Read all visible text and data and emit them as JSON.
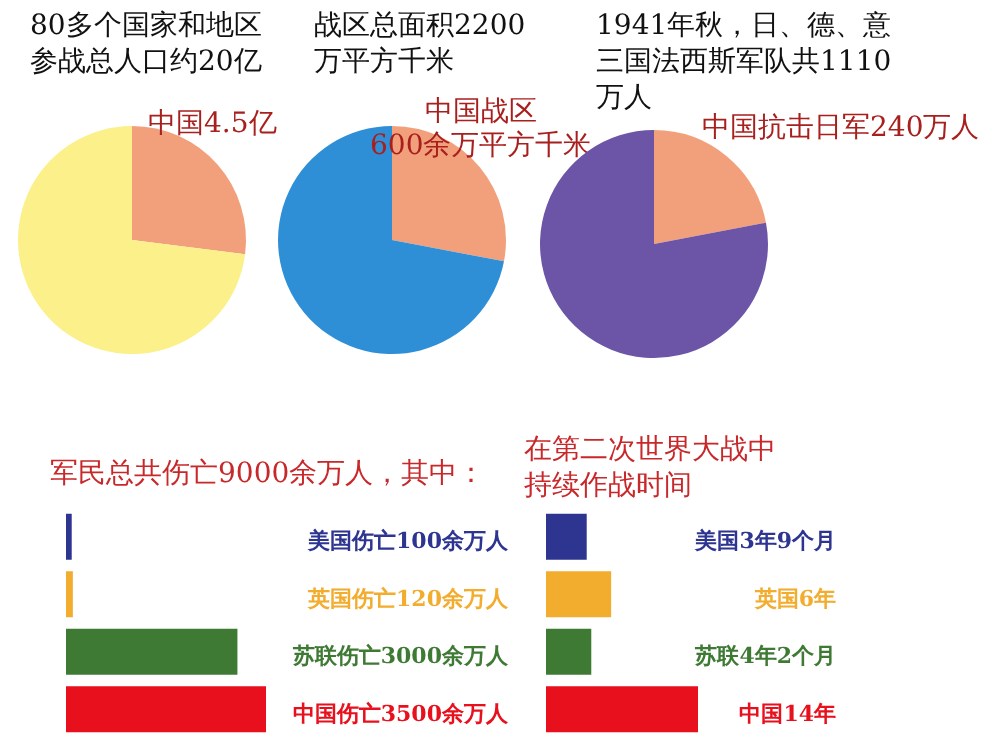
{
  "chart_data": [
    {
      "type": "pie",
      "title": "80多个国家和地区参战总人口约20亿",
      "categories": [
        "中国4.5亿",
        null
      ],
      "values": [
        27,
        73
      ],
      "colors": [
        "#f2a07c",
        "#fbf08a"
      ]
    },
    {
      "type": "pie",
      "title": "战区总面积2200万平方千米",
      "categories": [
        "中国战区\n600余万平方千米",
        null
      ],
      "values": [
        28,
        72
      ],
      "colors": [
        "#f2a07c",
        "#2e8fd6"
      ]
    },
    {
      "type": "pie",
      "title": "1941年秋，日、德、意三国法西斯军队共1110万人",
      "categories": [
        "中国抗击日军240万人",
        null
      ],
      "values": [
        22,
        78
      ],
      "colors": [
        "#f2a07c",
        "#6c55a6"
      ]
    },
    {
      "type": "bar",
      "orientation": "horizontal",
      "title": "军民总共伤亡9000余万人，其中：",
      "categories": [
        null,
        null,
        null,
        null
      ],
      "values": [
        100,
        120,
        3000,
        3500
      ],
      "colors": [
        "#2e3590",
        "#f2ac2e",
        "#3f7a35",
        "#e8101c"
      ],
      "value_labels": [
        "美国伤亡100余万人",
        "英国伤亡120余万人",
        "苏联伤亡3000余万人",
        "中国伤亡3500余万人"
      ]
    },
    {
      "type": "bar",
      "orientation": "horizontal",
      "title": "在第二次世界大战中持续作战时间",
      "categories": [
        null,
        null,
        null,
        null
      ],
      "values": [
        3.75,
        6,
        4.17,
        14
      ],
      "colors": [
        "#2e3590",
        "#f2ac2e",
        "#3f7a35",
        "#e8101c"
      ],
      "value_labels": [
        "美国3年9个月",
        "英国6年",
        "苏联4年2个月",
        "中国14年"
      ]
    }
  ]
}
